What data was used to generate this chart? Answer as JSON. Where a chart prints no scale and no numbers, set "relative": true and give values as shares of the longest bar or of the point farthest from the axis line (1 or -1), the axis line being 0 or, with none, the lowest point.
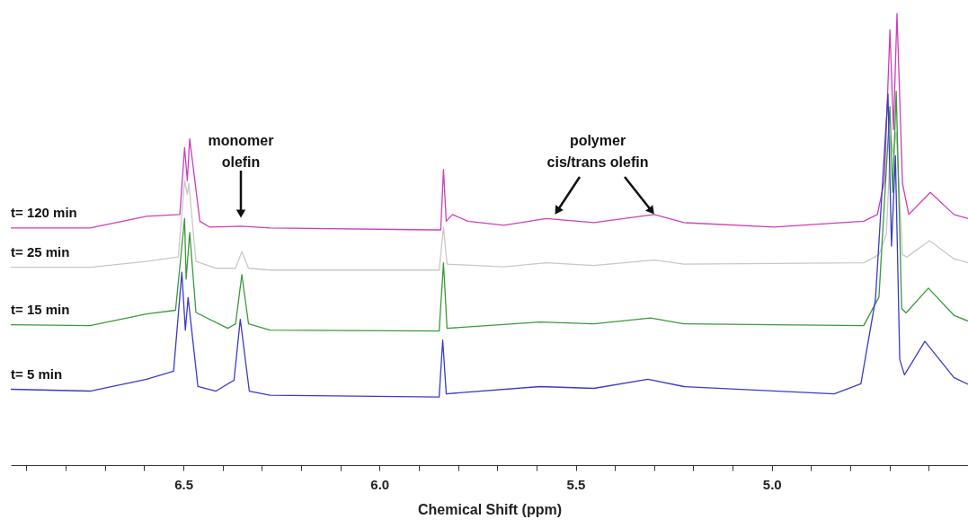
{
  "chart_data": {
    "type": "line",
    "relative": true,
    "xlabel": "Chemical Shift (ppm)",
    "xlim": [
      6.94,
      4.5
    ],
    "xticks": [
      {
        "value": 6.9,
        "label": null
      },
      {
        "value": 6.8,
        "label": null
      },
      {
        "value": 6.7,
        "label": null
      },
      {
        "value": 6.6,
        "label": null
      },
      6.5,
      {
        "value": 6.4,
        "label": null
      },
      {
        "value": 6.3,
        "label": null
      },
      {
        "value": 6.2,
        "label": null
      },
      {
        "value": 6.1,
        "label": null
      },
      {
        "value": 6,
        "label": "6.0"
      },
      {
        "value": 5.9,
        "label": null
      },
      {
        "value": 5.8,
        "label": null
      },
      {
        "value": 5.7,
        "label": null
      },
      {
        "value": 5.6,
        "label": null
      },
      5.5,
      {
        "value": 5.4,
        "label": null
      },
      {
        "value": 5.3,
        "label": null
      },
      {
        "value": 5.2,
        "label": null
      },
      {
        "value": 5.1,
        "label": null
      },
      {
        "value": 5,
        "label": "5.0"
      },
      {
        "value": 4.9,
        "label": null
      },
      {
        "value": 4.8,
        "label": null
      },
      {
        "value": 4.7,
        "label": null
      },
      {
        "value": 4.6,
        "label": null
      },
      {
        "value": 4.5,
        "label": null
      }
    ],
    "series": [
      {
        "name": "t= 120 min",
        "color": "#cc3fbb",
        "x": [
          6.94,
          6.738,
          6.594,
          6.509,
          6.497,
          6.49,
          6.484,
          6.458,
          6.433,
          6.353,
          6.279,
          5.867,
          5.844,
          5.837,
          5.83,
          5.814,
          5.775,
          5.683,
          5.575,
          5.454,
          5.3,
          5.224,
          4.995,
          4.766,
          4.731,
          4.713,
          4.699,
          4.69,
          4.681,
          4.667,
          4.651,
          4.596,
          4.536,
          4.5
        ],
        "values": [
          0.525,
          0.525,
          0.551,
          0.555,
          0.703,
          0.63,
          0.723,
          0.54,
          0.527,
          0.529,
          0.525,
          0.521,
          0.521,
          0.655,
          0.54,
          0.555,
          0.54,
          0.531,
          0.546,
          0.537,
          0.555,
          0.537,
          0.527,
          0.54,
          0.555,
          0.63,
          0.964,
          0.743,
          1.0,
          0.624,
          0.555,
          0.604,
          0.555,
          0.546
        ]
      },
      {
        "name": "t= 25 min",
        "color": "#c8c8c8",
        "x": [
          6.94,
          6.738,
          6.594,
          6.513,
          6.497,
          6.49,
          6.486,
          6.468,
          6.417,
          6.367,
          6.351,
          6.334,
          6.279,
          5.848,
          5.837,
          5.828,
          5.683,
          5.575,
          5.454,
          5.3,
          5.224,
          4.766,
          4.727,
          4.708,
          4.697,
          4.69,
          4.683,
          4.667,
          4.656,
          4.598,
          4.536,
          4.5
        ],
        "values": [
          0.438,
          0.438,
          0.451,
          0.461,
          0.63,
          0.6,
          0.624,
          0.451,
          0.436,
          0.436,
          0.473,
          0.436,
          0.432,
          0.432,
          0.527,
          0.445,
          0.439,
          0.448,
          0.442,
          0.454,
          0.445,
          0.448,
          0.466,
          0.511,
          0.729,
          0.689,
          0.738,
          0.466,
          0.461,
          0.497,
          0.457,
          0.448
        ]
      },
      {
        "name": "t= 15 min",
        "color": "#3a9a3a",
        "x": [
          6.94,
          6.738,
          6.594,
          6.52,
          6.497,
          6.493,
          6.484,
          6.468,
          6.387,
          6.367,
          6.351,
          6.334,
          6.279,
          5.848,
          5.837,
          5.828,
          5.591,
          5.454,
          5.309,
          5.224,
          4.766,
          4.727,
          4.699,
          4.692,
          4.683,
          4.669,
          4.658,
          4.601,
          4.536,
          4.5
        ],
        "values": [
          0.311,
          0.309,
          0.335,
          0.343,
          0.546,
          0.412,
          0.515,
          0.338,
          0.303,
          0.313,
          0.422,
          0.313,
          0.299,
          0.297,
          0.448,
          0.303,
          0.317,
          0.313,
          0.326,
          0.313,
          0.309,
          0.372,
          0.794,
          0.604,
          0.828,
          0.347,
          0.337,
          0.392,
          0.332,
          0.319
        ]
      },
      {
        "name": "t= 5 min",
        "color": "#3a3acc",
        "x": [
          6.94,
          6.738,
          6.594,
          6.525,
          6.504,
          6.495,
          6.488,
          6.463,
          6.417,
          6.371,
          6.355,
          6.332,
          6.279,
          5.848,
          5.839,
          5.83,
          5.591,
          5.454,
          5.316,
          5.224,
          4.841,
          4.773,
          4.736,
          4.704,
          4.695,
          4.685,
          4.674,
          4.662,
          4.61,
          4.536,
          4.5
        ],
        "values": [
          0.168,
          0.164,
          0.19,
          0.208,
          0.427,
          0.299,
          0.371,
          0.174,
          0.164,
          0.188,
          0.323,
          0.164,
          0.155,
          0.151,
          0.277,
          0.158,
          0.174,
          0.17,
          0.19,
          0.174,
          0.158,
          0.18,
          0.366,
          0.822,
          0.485,
          0.685,
          0.234,
          0.2,
          0.274,
          0.194,
          0.179
        ]
      }
    ],
    "annotations": [
      "monomer\nolefin",
      "polymer\ncis/trans olefin"
    ]
  }
}
